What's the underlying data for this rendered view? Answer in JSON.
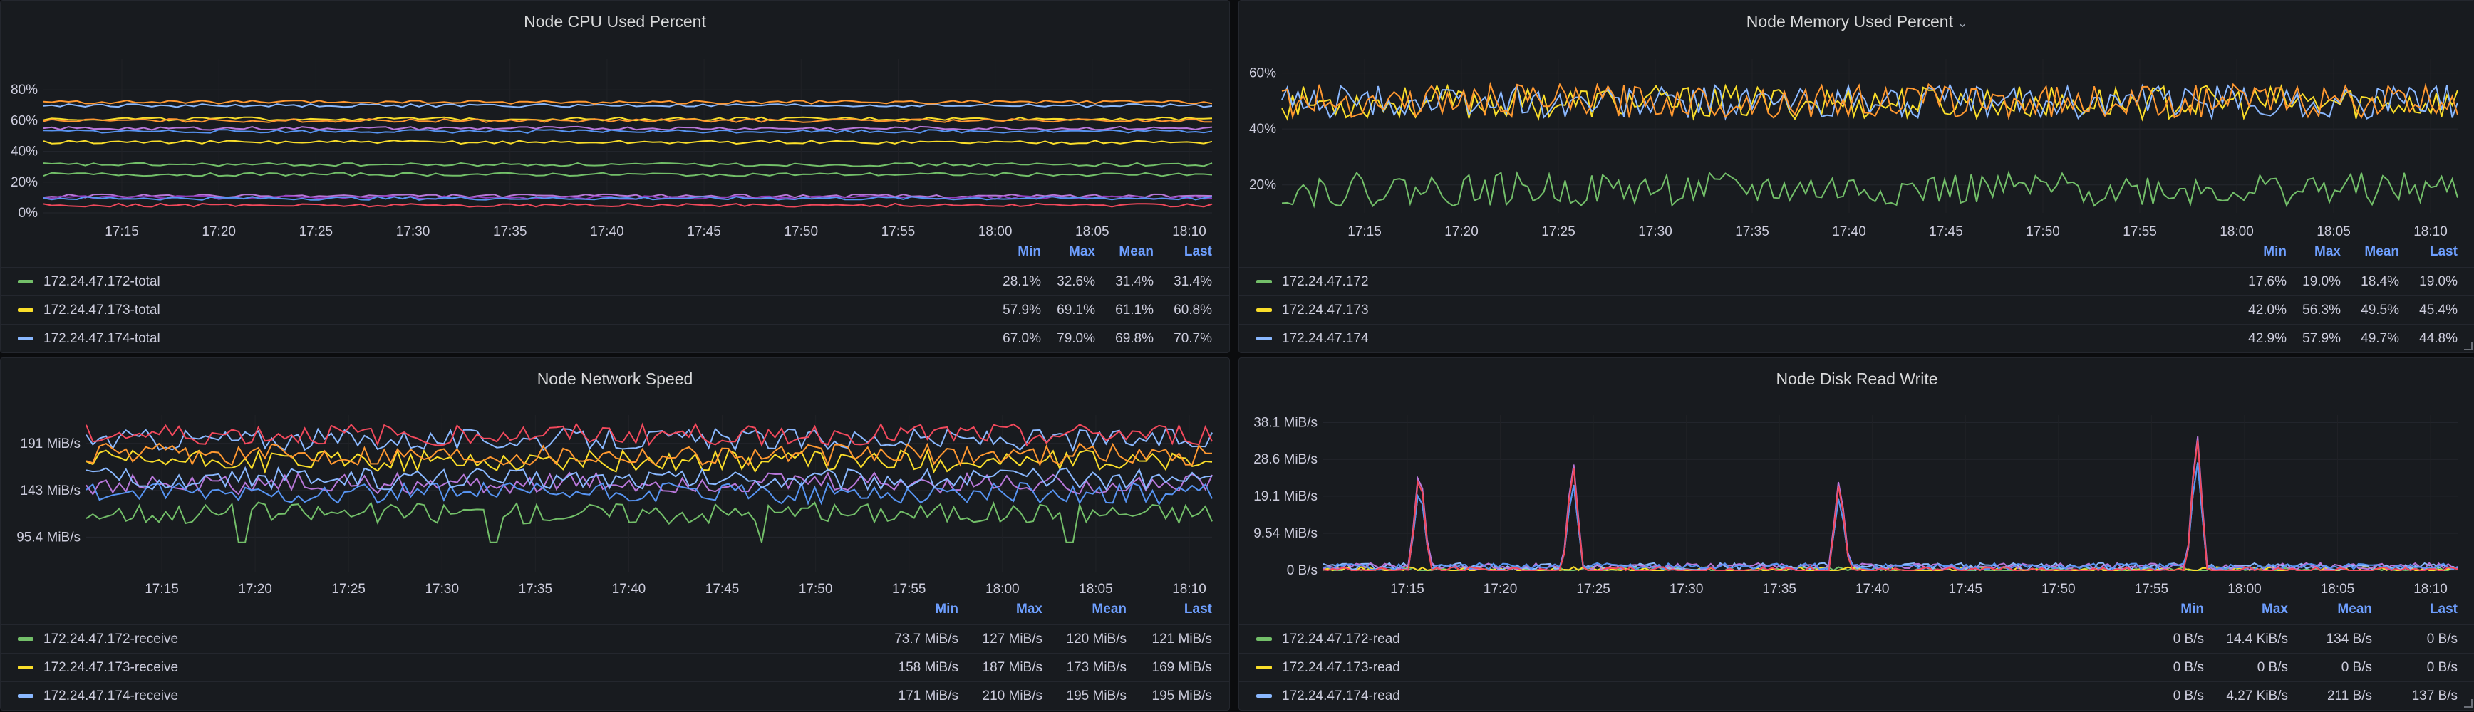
{
  "panels": {
    "cpu": {
      "title": "Node CPU Used Percent",
      "columns": [
        "Min",
        "Max",
        "Mean",
        "Last"
      ],
      "rows": [
        {
          "name": "172.24.47.172-total",
          "color": "#73bf69",
          "min": "28.1%",
          "max": "32.6%",
          "mean": "31.4%",
          "last": "31.4%"
        },
        {
          "name": "172.24.47.173-total",
          "color": "#fade2a",
          "min": "57.9%",
          "max": "69.1%",
          "mean": "61.1%",
          "last": "60.8%"
        },
        {
          "name": "172.24.47.174-total",
          "color": "#8ab8ff",
          "min": "67.0%",
          "max": "79.0%",
          "mean": "69.8%",
          "last": "70.7%"
        }
      ]
    },
    "memory": {
      "title": "Node Memory Used Percent",
      "columns": [
        "Min",
        "Max",
        "Mean",
        "Last"
      ],
      "rows": [
        {
          "name": "172.24.47.172",
          "color": "#73bf69",
          "min": "17.6%",
          "max": "19.0%",
          "mean": "18.4%",
          "last": "19.0%"
        },
        {
          "name": "172.24.47.173",
          "color": "#fade2a",
          "min": "42.0%",
          "max": "56.3%",
          "mean": "49.5%",
          "last": "45.4%"
        },
        {
          "name": "172.24.47.174",
          "color": "#8ab8ff",
          "min": "42.9%",
          "max": "57.9%",
          "mean": "49.7%",
          "last": "44.8%"
        }
      ]
    },
    "network": {
      "title": "Node Network Speed",
      "columns": [
        "Min",
        "Max",
        "Mean",
        "Last"
      ],
      "rows": [
        {
          "name": "172.24.47.172-receive",
          "color": "#73bf69",
          "min": "73.7 MiB/s",
          "max": "127 MiB/s",
          "mean": "120 MiB/s",
          "last": "121 MiB/s"
        },
        {
          "name": "172.24.47.173-receive",
          "color": "#fade2a",
          "min": "158 MiB/s",
          "max": "187 MiB/s",
          "mean": "173 MiB/s",
          "last": "169 MiB/s"
        },
        {
          "name": "172.24.47.174-receive",
          "color": "#8ab8ff",
          "min": "171 MiB/s",
          "max": "210 MiB/s",
          "mean": "195 MiB/s",
          "last": "195 MiB/s"
        }
      ]
    },
    "disk": {
      "title": "Node Disk Read Write",
      "columns": [
        "Min",
        "Max",
        "Mean",
        "Last"
      ],
      "rows": [
        {
          "name": "172.24.47.172-read",
          "color": "#73bf69",
          "min": "0 B/s",
          "max": "14.4 KiB/s",
          "mean": "134 B/s",
          "last": "0 B/s"
        },
        {
          "name": "172.24.47.173-read",
          "color": "#fade2a",
          "min": "0 B/s",
          "max": "0 B/s",
          "mean": "0 B/s",
          "last": "0 B/s"
        },
        {
          "name": "172.24.47.174-read",
          "color": "#8ab8ff",
          "min": "0 B/s",
          "max": "4.27 KiB/s",
          "mean": "211 B/s",
          "last": "137 B/s"
        }
      ]
    }
  },
  "chart_data": [
    {
      "type": "line",
      "title": "Node CPU Used Percent",
      "x_ticks": [
        "17:15",
        "17:20",
        "17:25",
        "17:30",
        "17:35",
        "17:40",
        "17:45",
        "17:50",
        "17:55",
        "18:00",
        "18:05",
        "18:10"
      ],
      "y_ticks": [
        "0%",
        "20%",
        "40%",
        "60%",
        "80%"
      ],
      "ylim": [
        0,
        100
      ],
      "series": [
        {
          "name": "172.24.47.172-total",
          "color": "#73bf69",
          "level": 31.4
        },
        {
          "name": "172.24.47.173-total",
          "color": "#fade2a",
          "level": 61.1
        },
        {
          "name": "172.24.47.174-total",
          "color": "#8ab8ff",
          "level": 69.8
        },
        {
          "color": "#ff9830",
          "level": 72
        },
        {
          "color": "#f2495c",
          "level": 5
        },
        {
          "color": "#b877d9",
          "level": 11
        },
        {
          "color": "#8f3bb8",
          "level": 10
        },
        {
          "color": "#5794f2",
          "level": 9.5
        },
        {
          "color": "#fade2a",
          "level": 46
        },
        {
          "color": "#73bf69",
          "level": 25
        },
        {
          "color": "#ff9830",
          "level": 60
        },
        {
          "color": "#b877d9",
          "level": 55
        },
        {
          "color": "#5794f2",
          "level": 53
        }
      ]
    },
    {
      "type": "line",
      "title": "Node Memory Used Percent",
      "x_ticks": [
        "17:15",
        "17:20",
        "17:25",
        "17:30",
        "17:35",
        "17:40",
        "17:45",
        "17:50",
        "17:55",
        "18:00",
        "18:05",
        "18:10"
      ],
      "y_ticks": [
        "20%",
        "40%",
        "60%"
      ],
      "ylim": [
        10,
        65
      ],
      "series": [
        {
          "name": "172.24.47.172",
          "color": "#73bf69",
          "level": 18.4
        },
        {
          "name": "172.24.47.173",
          "color": "#fade2a",
          "level": 49.5
        },
        {
          "name": "172.24.47.174",
          "color": "#8ab8ff",
          "level": 49.7
        },
        {
          "color": "#ff9830",
          "level": 50
        }
      ]
    },
    {
      "type": "line",
      "title": "Node Network Speed",
      "x_ticks": [
        "17:15",
        "17:20",
        "17:25",
        "17:30",
        "17:35",
        "17:40",
        "17:45",
        "17:50",
        "17:55",
        "18:00",
        "18:05",
        "18:10"
      ],
      "y_ticks": [
        "95.4 MiB/s",
        "143 MiB/s",
        "191 MiB/s"
      ],
      "ylim": [
        60,
        220
      ],
      "series": [
        {
          "name": "172.24.47.172-receive",
          "color": "#73bf69",
          "level": 120
        },
        {
          "name": "172.24.47.173-receive",
          "color": "#fade2a",
          "level": 173
        },
        {
          "name": "172.24.47.174-receive",
          "color": "#8ab8ff",
          "level": 195
        },
        {
          "color": "#f2495c",
          "level": 200
        },
        {
          "color": "#ff9830",
          "level": 180
        },
        {
          "color": "#b877d9",
          "level": 150
        },
        {
          "color": "#5794f2",
          "level": 140
        },
        {
          "color": "#8ab8ff",
          "level": 155
        }
      ]
    },
    {
      "type": "line",
      "title": "Node Disk Read Write",
      "x_ticks": [
        "17:15",
        "17:20",
        "17:25",
        "17:30",
        "17:35",
        "17:40",
        "17:45",
        "17:50",
        "17:55",
        "18:00",
        "18:05",
        "18:10"
      ],
      "y_ticks": [
        "0 B/s",
        "9.54 MiB/s",
        "19.1 MiB/s",
        "28.6 MiB/s",
        "38.1 MiB/s"
      ],
      "ylim": [
        0,
        40
      ],
      "series": [
        {
          "name": "172.24.47.172-read",
          "color": "#73bf69",
          "level": 0
        },
        {
          "name": "172.24.47.173-read",
          "color": "#fade2a",
          "level": 0
        },
        {
          "name": "172.24.47.174-read",
          "color": "#8ab8ff",
          "level": 1
        },
        {
          "color": "#b877d9",
          "level": 1
        },
        {
          "color": "#5794f2",
          "level": 1
        },
        {
          "color": "#f2495c",
          "level": 0
        }
      ]
    }
  ]
}
